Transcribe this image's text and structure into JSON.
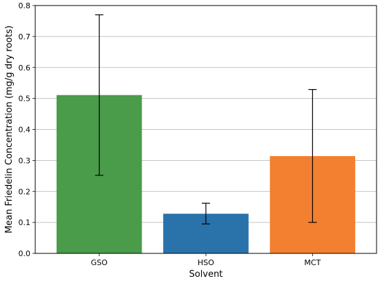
{
  "chart_data": {
    "type": "bar",
    "title": "",
    "xlabel": "Solvent",
    "ylabel": "Mean Friedelin Concentration (mg/g dry roots)",
    "categories": [
      "GSO",
      "HSO",
      "MCT"
    ],
    "values": [
      0.511,
      0.128,
      0.314
    ],
    "error_low": [
      0.252,
      0.095,
      0.1
    ],
    "error_high": [
      0.77,
      0.162,
      0.529
    ],
    "colors": [
      "#4a9b4a",
      "#2a72aa",
      "#f28030"
    ],
    "ylim": [
      0.0,
      0.8
    ],
    "yticks": [
      "0.0",
      "0.1",
      "0.2",
      "0.3",
      "0.4",
      "0.5",
      "0.6",
      "0.7",
      "0.8"
    ],
    "grid": "y"
  }
}
